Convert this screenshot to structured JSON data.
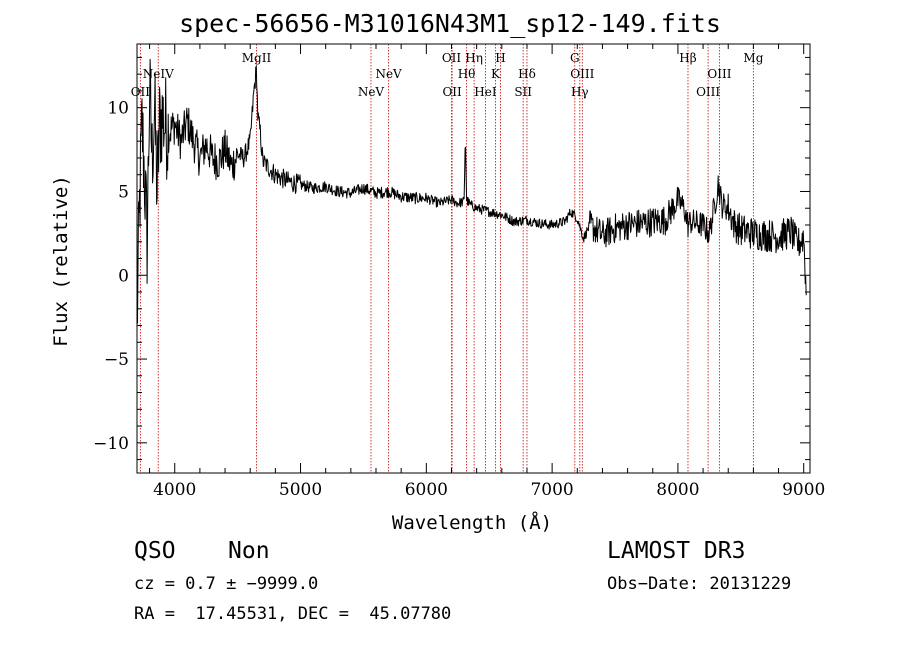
{
  "colors": {
    "line_marker": "#cc2222",
    "spectrum": "#000000",
    "axes": "#000000"
  },
  "chart_data": {
    "type": "line",
    "title": "spec-56656-M31016N43M1_sp12-149.fits",
    "xlabel": "Wavelength (Å)",
    "ylabel": "Flux (relative)",
    "xlim": [
      3700,
      9050
    ],
    "ylim": [
      -11.8,
      13.8
    ],
    "xticks": [
      4000,
      5000,
      6000,
      7000,
      8000,
      9000
    ],
    "yticks": [
      -10,
      -5,
      0,
      5,
      10
    ],
    "series": [
      {
        "name": "spectrum",
        "x": [
          3700,
          3720,
          3740,
          3760,
          3780,
          3800,
          3820,
          3840,
          3860,
          3880,
          3900,
          3950,
          4000,
          4050,
          4100,
          4150,
          4200,
          4250,
          4300,
          4350,
          4400,
          4450,
          4500,
          4550,
          4600,
          4630,
          4650,
          4660,
          4680,
          4700,
          4750,
          4800,
          4900,
          5000,
          5100,
          5200,
          5300,
          5400,
          5500,
          5600,
          5700,
          5800,
          5900,
          6000,
          6100,
          6200,
          6250,
          6300,
          6310,
          6320,
          6350,
          6400,
          6500,
          6600,
          6700,
          6800,
          6900,
          7000,
          7100,
          7150,
          7200,
          7250,
          7300,
          7400,
          7500,
          7600,
          7700,
          7800,
          7900,
          8000,
          8050,
          8080,
          8100,
          8150,
          8200,
          8250,
          8300,
          8320,
          8350,
          8400,
          8450,
          8500,
          8600,
          8700,
          8800,
          8900,
          8950,
          9000,
          9020
        ],
        "values": [
          -3,
          4,
          9,
          6,
          2,
          11,
          7,
          10,
          5,
          9,
          9.5,
          8.5,
          9,
          8,
          9.2,
          8,
          7,
          7.8,
          7,
          6.8,
          7.5,
          6.5,
          7.2,
          7,
          8,
          11,
          12.3,
          9.5,
          8.5,
          6.8,
          6.4,
          6,
          5.6,
          5.4,
          5.2,
          5.3,
          5,
          4.9,
          5.2,
          4.9,
          5,
          4.7,
          4.6,
          4.6,
          4.3,
          4.5,
          4.3,
          4.4,
          8.5,
          4.5,
          4.2,
          4,
          3.8,
          3.6,
          3.2,
          3.3,
          3.1,
          3,
          3.2,
          3.8,
          3.4,
          2.2,
          3,
          2.4,
          2.8,
          3,
          3.1,
          3.2,
          3.3,
          4.5,
          4,
          3,
          3.2,
          3.1,
          3,
          2.5,
          4.5,
          5.5,
          4.2,
          4,
          3,
          2.7,
          2.5,
          2.4,
          2.3,
          2.6,
          1.8,
          2.3,
          -1
        ]
      }
    ],
    "line_labels": [
      {
        "text": "OII",
        "x": 3727,
        "row": 3
      },
      {
        "text": "NeIV",
        "x": 3869,
        "row": 2
      },
      {
        "text": "MgII",
        "x": 4650,
        "row": 0
      },
      {
        "text": "NeV",
        "x": 5560,
        "row": 3
      },
      {
        "text": "NeV",
        "x": 5700,
        "row": 2
      },
      {
        "text": "OII",
        "x": 6200,
        "row": 0
      },
      {
        "text": "OII",
        "x": 6205,
        "row": 3
      },
      {
        "text": "Hθ",
        "x": 6320,
        "row": 1
      },
      {
        "text": "Hη",
        "x": 6380,
        "row": 0
      },
      {
        "text": "HeI",
        "x": 6470,
        "row": 3
      },
      {
        "text": "K",
        "x": 6550,
        "row": 1
      },
      {
        "text": "H",
        "x": 6590,
        "row": 0
      },
      {
        "text": "Hδ",
        "x": 6800,
        "row": 1
      },
      {
        "text": "SII",
        "x": 6770,
        "row": 3
      },
      {
        "text": "G",
        "x": 7180,
        "row": 0
      },
      {
        "text": "OIII",
        "x": 7240,
        "row": 1
      },
      {
        "text": "Hγ",
        "x": 7220,
        "row": 3
      },
      {
        "text": "Hβ",
        "x": 8080,
        "row": 0
      },
      {
        "text": "OIII",
        "x": 8330,
        "row": 1
      },
      {
        "text": "OIII",
        "x": 8240,
        "row": 3
      },
      {
        "text": "Mg",
        "x": 8600,
        "row": 0
      }
    ]
  },
  "info": {
    "class": "QSO",
    "subclass": "Non",
    "survey": "LAMOST DR3",
    "cz": "cz = 0.7 ± −9999.0",
    "obs_date": "Obs−Date: 20131229",
    "radec": "RA =  17.45531, DEC =  45.07780"
  }
}
